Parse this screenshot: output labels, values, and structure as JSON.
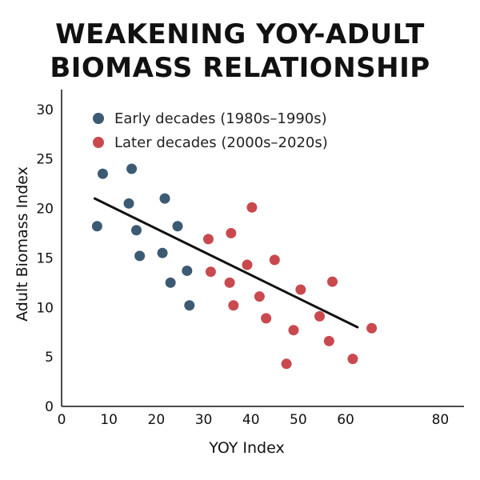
{
  "chart_data": {
    "type": "scatter",
    "title_lines": [
      "WEAKENING YOY-ADULT",
      "BIOMASS RELATIONSHIP"
    ],
    "xlabel": "YOY Index",
    "ylabel": "Adult Biomass Index",
    "xlim": [
      0,
      85
    ],
    "ylim": [
      0,
      32
    ],
    "xticks": [
      0,
      10,
      20,
      30,
      40,
      50,
      60,
      80
    ],
    "yticks": [
      0,
      5,
      10,
      15,
      20,
      25,
      30
    ],
    "grid": false,
    "legend_position": "top-left",
    "series": [
      {
        "name": "Early decades (1980s–1990s)",
        "color": "#3d5a73",
        "points": [
          {
            "x": 7.5,
            "y": 18.2
          },
          {
            "x": 8.7,
            "y": 23.5
          },
          {
            "x": 14.2,
            "y": 20.5
          },
          {
            "x": 14.8,
            "y": 24.0
          },
          {
            "x": 15.8,
            "y": 17.8
          },
          {
            "x": 16.5,
            "y": 15.2
          },
          {
            "x": 21.3,
            "y": 15.5
          },
          {
            "x": 21.8,
            "y": 21.0
          },
          {
            "x": 23.0,
            "y": 12.5
          },
          {
            "x": 24.5,
            "y": 18.2
          },
          {
            "x": 26.5,
            "y": 13.7
          },
          {
            "x": 27.0,
            "y": 10.2
          }
        ]
      },
      {
        "name": "Later decades (2000s–2020s)",
        "color": "#c9494f",
        "points": [
          {
            "x": 31.0,
            "y": 16.9
          },
          {
            "x": 31.5,
            "y": 13.6
          },
          {
            "x": 35.5,
            "y": 12.5
          },
          {
            "x": 35.8,
            "y": 17.5
          },
          {
            "x": 36.3,
            "y": 10.2
          },
          {
            "x": 39.2,
            "y": 14.3
          },
          {
            "x": 40.2,
            "y": 20.1
          },
          {
            "x": 41.8,
            "y": 11.1
          },
          {
            "x": 43.2,
            "y": 8.9
          },
          {
            "x": 45.0,
            "y": 14.8
          },
          {
            "x": 47.5,
            "y": 4.3
          },
          {
            "x": 49.0,
            "y": 7.7
          },
          {
            "x": 50.5,
            "y": 11.8
          },
          {
            "x": 54.5,
            "y": 9.1
          },
          {
            "x": 56.5,
            "y": 6.6
          },
          {
            "x": 57.2,
            "y": 12.6
          },
          {
            "x": 61.5,
            "y": 4.8
          },
          {
            "x": 65.5,
            "y": 7.9
          }
        ]
      }
    ],
    "trendline": {
      "color": "#111111",
      "from": {
        "x": 7.0,
        "y": 21.0
      },
      "to": {
        "x": 62.5,
        "y": 8.0
      }
    }
  }
}
